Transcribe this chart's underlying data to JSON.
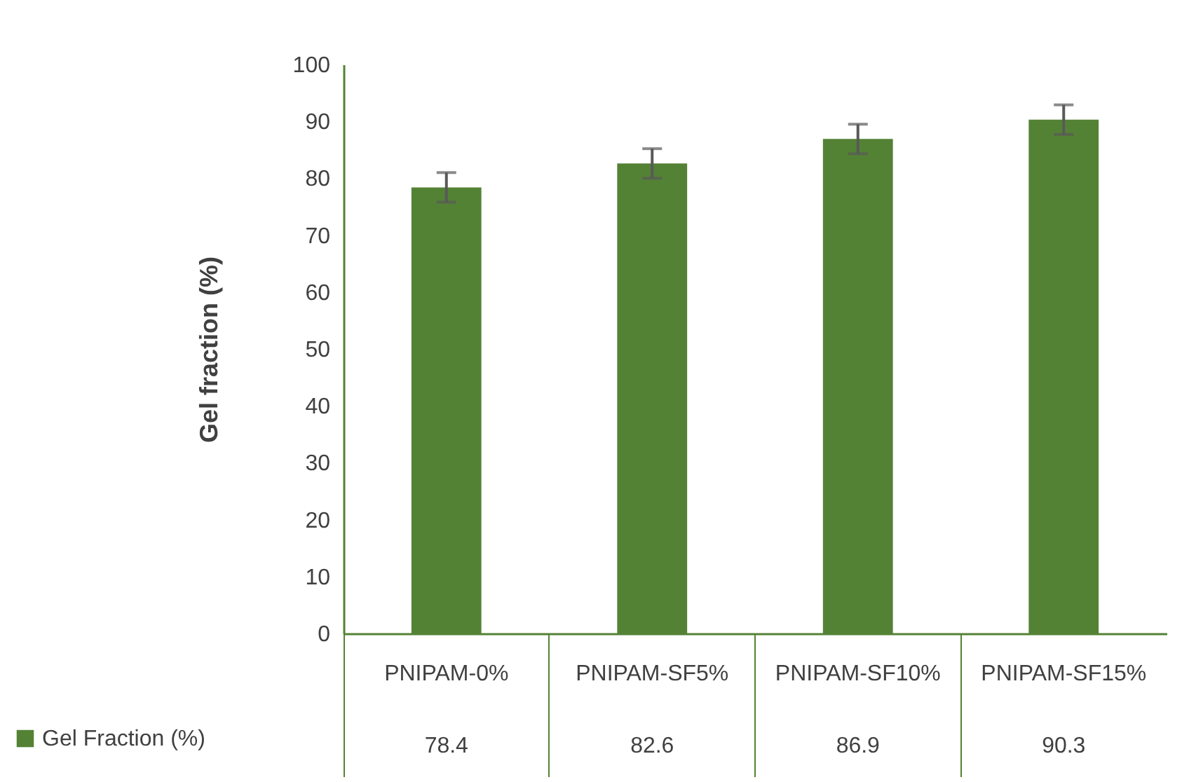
{
  "chart_data": {
    "type": "bar",
    "ylabel": "Gel fraction (%)",
    "categories": [
      "PNIPAM-0%",
      "PNIPAM-SF5%",
      "PNIPAM-SF10%",
      "PNIPAM-SF15%"
    ],
    "series": [
      {
        "name": "Gel Fraction (%)",
        "color": "#548235",
        "values": [
          78.4,
          82.6,
          86.9,
          90.3
        ],
        "errors": [
          2.6,
          2.6,
          2.6,
          2.6
        ]
      }
    ],
    "ylim": [
      0,
      100
    ],
    "yticks": [
      0,
      10,
      20,
      30,
      40,
      50,
      60,
      70,
      80,
      90,
      100
    ],
    "grid": false,
    "legend": "bottom left",
    "data_labels": true
  }
}
